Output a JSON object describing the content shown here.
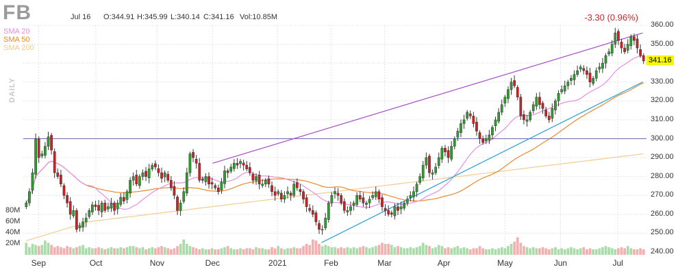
{
  "header": {
    "ticker": "FB",
    "date": "Jul 16",
    "open": "O:344.91",
    "high": "H:345.99",
    "low": "L:340.14",
    "close": "C:341.16",
    "volume": "Vol:10.85M",
    "change": "-3.30 (0.96%)",
    "period": "DAILY"
  },
  "legend": [
    {
      "label": "SMA 20",
      "color": "#e58ee5"
    },
    {
      "label": "SMA 50",
      "color": "#e8892e"
    },
    {
      "label": "SMA 200",
      "color": "#f2cc8f"
    }
  ],
  "last_price": "341.16",
  "colors": {
    "up": "#2e9e2e",
    "down": "#cc2222",
    "vol_up": "#a9dca9",
    "vol_down": "#f2b0b0",
    "upper_trend": "#a64ac9",
    "lower_trend": "#2a9fd6",
    "support": "#6a6aaa"
  },
  "chart_data": {
    "type": "candlestick",
    "title": "FB",
    "y_axis": {
      "ticks": [
        "360.00",
        "350.00",
        "340.00",
        "330.00",
        "320.00",
        "310.00",
        "300.00",
        "290.00",
        "280.00",
        "270.00",
        "260.00",
        "250.00",
        "240.00"
      ],
      "ylim": [
        240,
        360
      ]
    },
    "volume_axis": {
      "ticks": [
        "80M",
        "60M",
        "40M",
        "20M"
      ],
      "ylim": [
        0,
        80
      ]
    },
    "x_labels": [
      {
        "label": "Sep",
        "date": "2020-09-01"
      },
      {
        "label": "Oct",
        "date": "2020-10-01"
      },
      {
        "label": "Nov",
        "date": "2020-11-02"
      },
      {
        "label": "Dec",
        "date": "2020-12-01"
      },
      {
        "label": "2021",
        "date": "2021-01-04"
      },
      {
        "label": "Feb",
        "date": "2021-02-01"
      },
      {
        "label": "Mar",
        "date": "2021-03-01"
      },
      {
        "label": "Apr",
        "date": "2021-04-01"
      },
      {
        "label": "May",
        "date": "2021-05-03"
      },
      {
        "label": "Jun",
        "date": "2021-06-01"
      },
      {
        "label": "Jul",
        "date": "2021-07-01"
      }
    ],
    "closes": [
      266,
      272,
      282,
      300,
      290,
      292,
      296,
      301,
      294,
      282,
      280,
      276,
      270,
      266,
      260,
      262,
      252,
      254,
      256,
      258,
      262,
      265,
      264,
      262,
      266,
      262,
      264,
      266,
      262,
      266,
      269,
      267,
      272,
      278,
      280,
      276,
      280,
      282,
      280,
      284,
      286,
      285,
      282,
      279,
      282,
      278,
      274,
      270,
      262,
      266,
      272,
      282,
      292,
      290,
      287,
      278,
      278,
      280,
      276,
      276,
      274,
      272,
      277,
      283,
      282,
      285,
      287,
      286,
      288,
      286,
      284,
      282,
      278,
      280,
      276,
      276,
      278,
      276,
      272,
      270,
      272,
      268,
      270,
      272,
      270,
      276,
      274,
      272,
      268,
      264,
      262,
      260,
      256,
      252,
      252,
      258,
      266,
      270,
      272,
      270,
      266,
      262,
      262,
      264,
      266,
      270,
      268,
      266,
      266,
      268,
      270,
      272,
      268,
      264,
      262,
      260,
      260,
      264,
      262,
      264,
      266,
      268,
      270,
      272,
      276,
      280,
      286,
      290,
      282,
      282,
      285,
      290,
      295,
      293,
      290,
      296,
      300,
      304,
      308,
      310,
      314,
      312,
      308,
      304,
      300,
      298,
      300,
      302,
      306,
      310,
      314,
      318,
      322,
      326,
      330,
      328,
      322,
      312,
      310,
      310,
      314,
      318,
      322,
      318,
      316,
      312,
      310,
      316,
      320,
      324,
      326,
      328,
      330,
      332,
      334,
      336,
      338,
      336,
      334,
      330,
      332,
      336,
      338,
      340,
      344,
      346,
      350,
      356,
      352,
      348,
      346,
      350,
      354,
      352,
      348,
      344,
      341.16
    ],
    "volumes": [
      22,
      14,
      20,
      18,
      16,
      18,
      26,
      22,
      18,
      14,
      16,
      14,
      12,
      16,
      14,
      12,
      14,
      16,
      18,
      12,
      14,
      12,
      12,
      14,
      12,
      10,
      12,
      14,
      12,
      12,
      14,
      12,
      14,
      16,
      16,
      14,
      12,
      14,
      10,
      12,
      14,
      12,
      14,
      16,
      14,
      12,
      10,
      12,
      16,
      20,
      28,
      20,
      16,
      14,
      12,
      10,
      12,
      10,
      10,
      12,
      10,
      10,
      12,
      14,
      16,
      12,
      10,
      10,
      12,
      10,
      12,
      12,
      10,
      14,
      12,
      12,
      10,
      10,
      14,
      12,
      16,
      12,
      10,
      12,
      12,
      14,
      12,
      12,
      16,
      20,
      18,
      28,
      26,
      20,
      16,
      18,
      16,
      14,
      14,
      12,
      14,
      12,
      14,
      12,
      14,
      12,
      14,
      16,
      14,
      12,
      14,
      16,
      18,
      22,
      20,
      20,
      18,
      14,
      16,
      14,
      12,
      12,
      14,
      12,
      14,
      16,
      22,
      18,
      16,
      12,
      14,
      18,
      16,
      12,
      14,
      12,
      14,
      16,
      12,
      14,
      12,
      10,
      12,
      12,
      16,
      12,
      10,
      10,
      12,
      10,
      12,
      14,
      12,
      16,
      20,
      24,
      32,
      22,
      16,
      14,
      12,
      14,
      12,
      12,
      14,
      12,
      10,
      12,
      14,
      10,
      12,
      10,
      12,
      14,
      12,
      10,
      12,
      14,
      10,
      12,
      10,
      10,
      12,
      14,
      16,
      14,
      12,
      10,
      12,
      14,
      12,
      16,
      12,
      10,
      10,
      12,
      10
    ],
    "annotations": [
      {
        "type": "horizontal_line",
        "y": 300,
        "name": "support"
      },
      {
        "type": "trendline",
        "from": {
          "date": "2020-12-01",
          "y": 287
        },
        "to": {
          "date": "2021-07-14",
          "y": 356
        },
        "name": "upper"
      },
      {
        "type": "trendline",
        "from": {
          "date": "2021-01-27",
          "y": 245
        },
        "to": {
          "date": "2021-07-14",
          "y": 330
        },
        "name": "lower"
      }
    ],
    "series": [
      {
        "name": "SMA 20"
      },
      {
        "name": "SMA 50"
      },
      {
        "name": "SMA 200"
      }
    ]
  }
}
